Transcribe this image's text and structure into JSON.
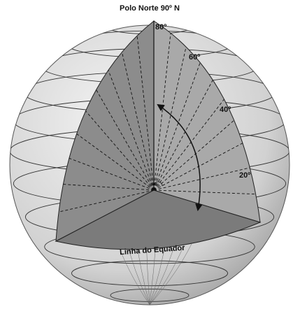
{
  "title": "Polo Norte 90º N",
  "latitude_labels": [
    "80º",
    "60º",
    "40º",
    "20º"
  ],
  "equator_label": "Linha do Equador"
}
